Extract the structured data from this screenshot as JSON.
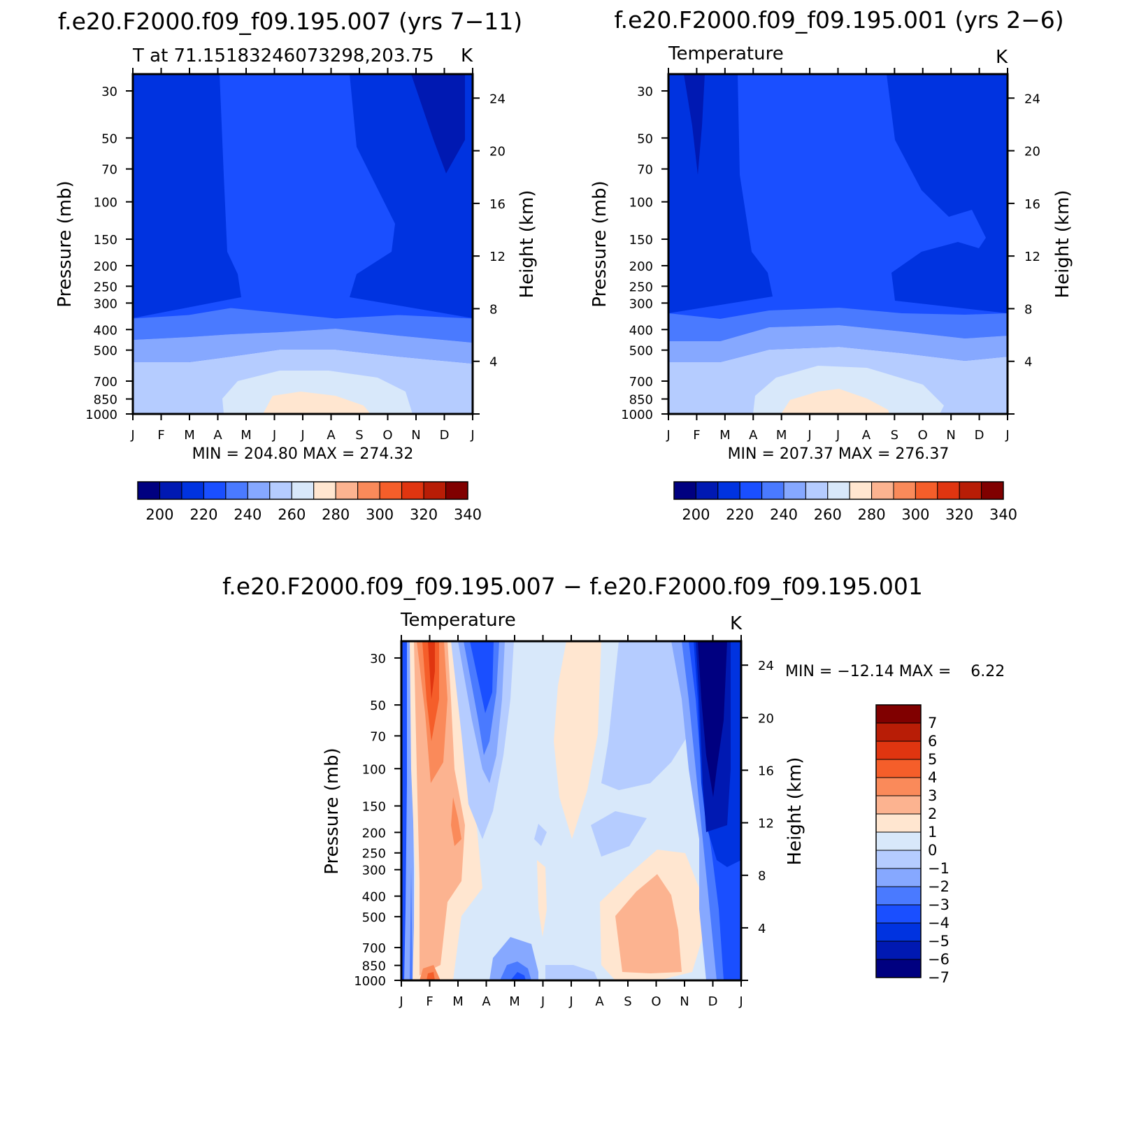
{
  "chart_data": [
    {
      "type": "heatmap",
      "title": "f.e20.F2000.f09_f09.195.007 (yrs 7−11)",
      "subtitle_left": "T at 71.15183246073298,203.75",
      "subtitle_right": "K",
      "xlabel": "",
      "ylabel": "Pressure (mb)",
      "ylabel_right": "Height (km)",
      "x_categories": [
        "J",
        "F",
        "M",
        "A",
        "M",
        "J",
        "J",
        "A",
        "S",
        "O",
        "N",
        "D",
        "J"
      ],
      "y_ticks": [
        "30",
        "50",
        "70",
        "100",
        "150",
        "200",
        "250",
        "300",
        "400",
        "500",
        "700",
        "850",
        "1000"
      ],
      "y_ticks_right": [
        "24",
        "20",
        "16",
        "12",
        "8",
        "4"
      ],
      "stats": "MIN = 204.80 MAX = 274.32",
      "min": 204.8,
      "max": 274.32,
      "colorbar": {
        "orientation": "horizontal",
        "labels": [
          "200",
          "220",
          "240",
          "260",
          "280",
          "300",
          "320",
          "340"
        ],
        "levels": [
          190,
          200,
          210,
          220,
          230,
          240,
          250,
          260,
          270,
          280,
          290,
          300,
          310,
          320,
          330,
          340,
          350
        ]
      }
    },
    {
      "type": "heatmap",
      "title": "f.e20.F2000.f09_f09.195.001 (yrs 2−6)",
      "subtitle_left": "Temperature",
      "subtitle_right": "K",
      "xlabel": "",
      "ylabel": "Pressure (mb)",
      "ylabel_right": "Height (km)",
      "x_categories": [
        "J",
        "F",
        "M",
        "A",
        "M",
        "J",
        "J",
        "A",
        "S",
        "O",
        "N",
        "D",
        "J"
      ],
      "y_ticks": [
        "30",
        "50",
        "70",
        "100",
        "150",
        "200",
        "250",
        "300",
        "400",
        "500",
        "700",
        "850",
        "1000"
      ],
      "y_ticks_right": [
        "24",
        "20",
        "16",
        "12",
        "8",
        "4"
      ],
      "stats": "MIN = 207.37 MAX = 276.37",
      "min": 207.37,
      "max": 276.37,
      "colorbar": {
        "orientation": "horizontal",
        "labels": [
          "200",
          "220",
          "240",
          "260",
          "280",
          "300",
          "320",
          "340"
        ],
        "levels": [
          190,
          200,
          210,
          220,
          230,
          240,
          250,
          260,
          270,
          280,
          290,
          300,
          310,
          320,
          330,
          340,
          350
        ]
      }
    },
    {
      "type": "heatmap",
      "title": "f.e20.F2000.f09_f09.195.007 − f.e20.F2000.f09_f09.195.001",
      "subtitle_left": "Temperature",
      "subtitle_right": "K",
      "xlabel": "",
      "ylabel": "Pressure (mb)",
      "ylabel_right": "Height (km)",
      "x_categories": [
        "J",
        "F",
        "M",
        "A",
        "M",
        "J",
        "J",
        "A",
        "S",
        "O",
        "N",
        "D",
        "J"
      ],
      "y_ticks": [
        "30",
        "50",
        "70",
        "100",
        "150",
        "200",
        "250",
        "300",
        "400",
        "500",
        "700",
        "850",
        "1000"
      ],
      "y_ticks_right": [
        "24",
        "20",
        "16",
        "12",
        "8",
        "4"
      ],
      "stats": "MIN = −12.14 MAX =    6.22",
      "min": -12.14,
      "max": 6.22,
      "colorbar": {
        "orientation": "vertical",
        "labels": [
          "7",
          "6",
          "5",
          "4",
          "3",
          "2",
          "1",
          "0",
          "−1",
          "−2",
          "−3",
          "−4",
          "−5",
          "−6",
          "−7"
        ],
        "levels": [
          -8,
          -7,
          -6,
          -5,
          -4,
          -3,
          -2,
          -1,
          0,
          1,
          2,
          3,
          4,
          5,
          6,
          7,
          8
        ]
      }
    }
  ],
  "palette": [
    "#000080",
    "#0019b2",
    "#0033e0",
    "#1a4fff",
    "#4a7aff",
    "#86a8ff",
    "#b5ccff",
    "#d8e8fa",
    "#ffe6d0",
    "#fcb390",
    "#fa8a5a",
    "#f55e2a",
    "#e03510",
    "#b81d06",
    "#800000"
  ],
  "diff_palette": [
    "#000080",
    "#0019b2",
    "#0033e0",
    "#1a4fff",
    "#4a7aff",
    "#86a8ff",
    "#b5ccff",
    "#d8e8fa",
    "#ffe6d0",
    "#fcb390",
    "#fa8a5a",
    "#f55e2a",
    "#e03510",
    "#b81d06",
    "#800000"
  ]
}
